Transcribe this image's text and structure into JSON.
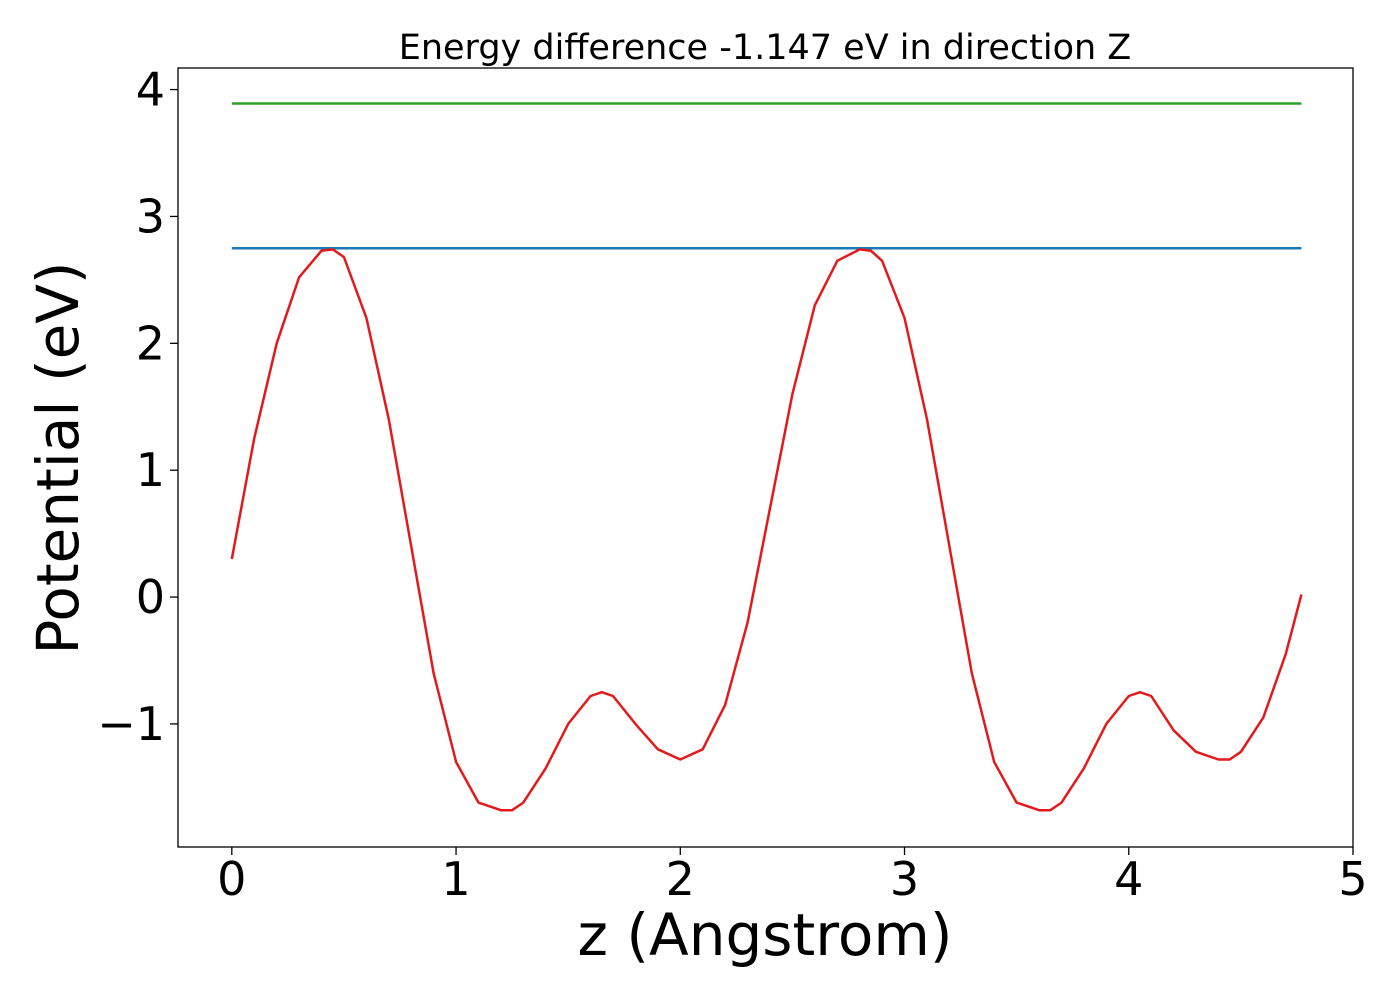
{
  "chart_data": {
    "type": "line",
    "title": "Energy difference -1.147 eV in direction Z",
    "xlabel": "z (Angstrom)",
    "ylabel": "Potential (eV)",
    "xlim": [
      -0.24,
      5.0
    ],
    "ylim": [
      -1.97,
      4.17
    ],
    "x_ticks": [
      0,
      1,
      2,
      3,
      4,
      5
    ],
    "x_tick_labels": [
      "0",
      "1",
      "2",
      "3",
      "4",
      "5"
    ],
    "y_ticks": [
      -1,
      0,
      1,
      2,
      3,
      4
    ],
    "y_tick_labels": [
      "−1",
      "0",
      "1",
      "2",
      "3",
      "4"
    ],
    "grid": false,
    "legend": "none",
    "series": [
      {
        "color": "#2ca02c",
        "x": [
          0,
          4.77
        ],
        "y": [
          3.89,
          3.89
        ]
      },
      {
        "color": "#1f77b4",
        "x": [
          0,
          4.77
        ],
        "y": [
          2.75,
          2.75
        ]
      },
      {
        "color": "#e31a1c",
        "x": [
          0,
          0.1,
          0.2,
          0.3,
          0.4,
          0.45,
          0.5,
          0.6,
          0.7,
          0.8,
          0.9,
          1.0,
          1.1,
          1.2,
          1.25,
          1.3,
          1.4,
          1.5,
          1.6,
          1.65,
          1.7,
          1.8,
          1.9,
          2.0,
          2.1,
          2.2,
          2.3,
          2.4,
          2.5,
          2.6,
          2.7,
          2.8,
          2.85,
          2.9,
          3.0,
          3.1,
          3.2,
          3.3,
          3.4,
          3.5,
          3.6,
          3.65,
          3.7,
          3.8,
          3.9,
          4.0,
          4.05,
          4.1,
          4.2,
          4.3,
          4.4,
          4.45,
          4.5,
          4.6,
          4.7,
          4.77
        ],
        "y": [
          0.3,
          1.25,
          2.0,
          2.52,
          2.73,
          2.74,
          2.68,
          2.2,
          1.4,
          0.4,
          -0.6,
          -1.3,
          -1.62,
          -1.68,
          -1.68,
          -1.62,
          -1.35,
          -1.0,
          -0.78,
          -0.75,
          -0.78,
          -1.0,
          -1.2,
          -1.28,
          -1.2,
          -0.85,
          -0.2,
          0.7,
          1.6,
          2.3,
          2.65,
          2.74,
          2.73,
          2.65,
          2.2,
          1.4,
          0.4,
          -0.6,
          -1.3,
          -1.62,
          -1.68,
          -1.68,
          -1.62,
          -1.35,
          -1.0,
          -0.78,
          -0.75,
          -0.78,
          -1.05,
          -1.22,
          -1.28,
          -1.28,
          -1.22,
          -0.95,
          -0.45,
          0.02
        ]
      }
    ]
  }
}
